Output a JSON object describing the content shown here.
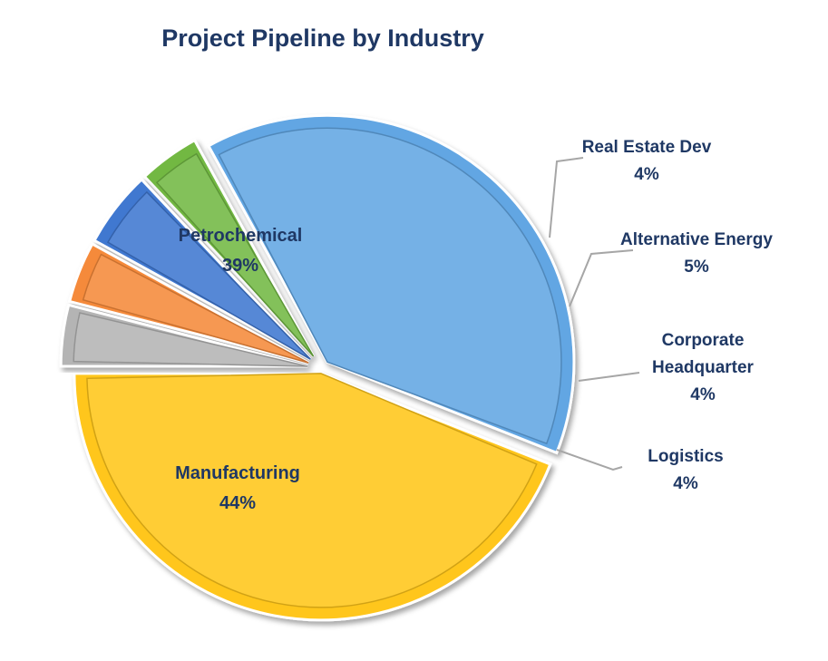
{
  "chart_data": {
    "type": "pie",
    "title": "Project Pipeline by Industry",
    "slices": [
      {
        "label": "Manufacturing",
        "value": 44,
        "display": "44%",
        "color": "#FFC61A"
      },
      {
        "label": "Petrochemical",
        "value": 39,
        "display": "39%",
        "color": "#62A6E3"
      },
      {
        "label": "Real Estate Dev",
        "value": 4,
        "display": "4%",
        "color": "#72B843"
      },
      {
        "label": "Alternative Energy",
        "value": 5,
        "display": "5%",
        "color": "#3F78D0"
      },
      {
        "label": "Corporate Headquarter",
        "value": 4,
        "display": "4%",
        "color": "#F58A3A"
      },
      {
        "label": "Logistics",
        "value": 4,
        "display": "4%",
        "color": "#B4B4B4"
      }
    ],
    "label_color": "#1F3864",
    "legend": "none"
  }
}
